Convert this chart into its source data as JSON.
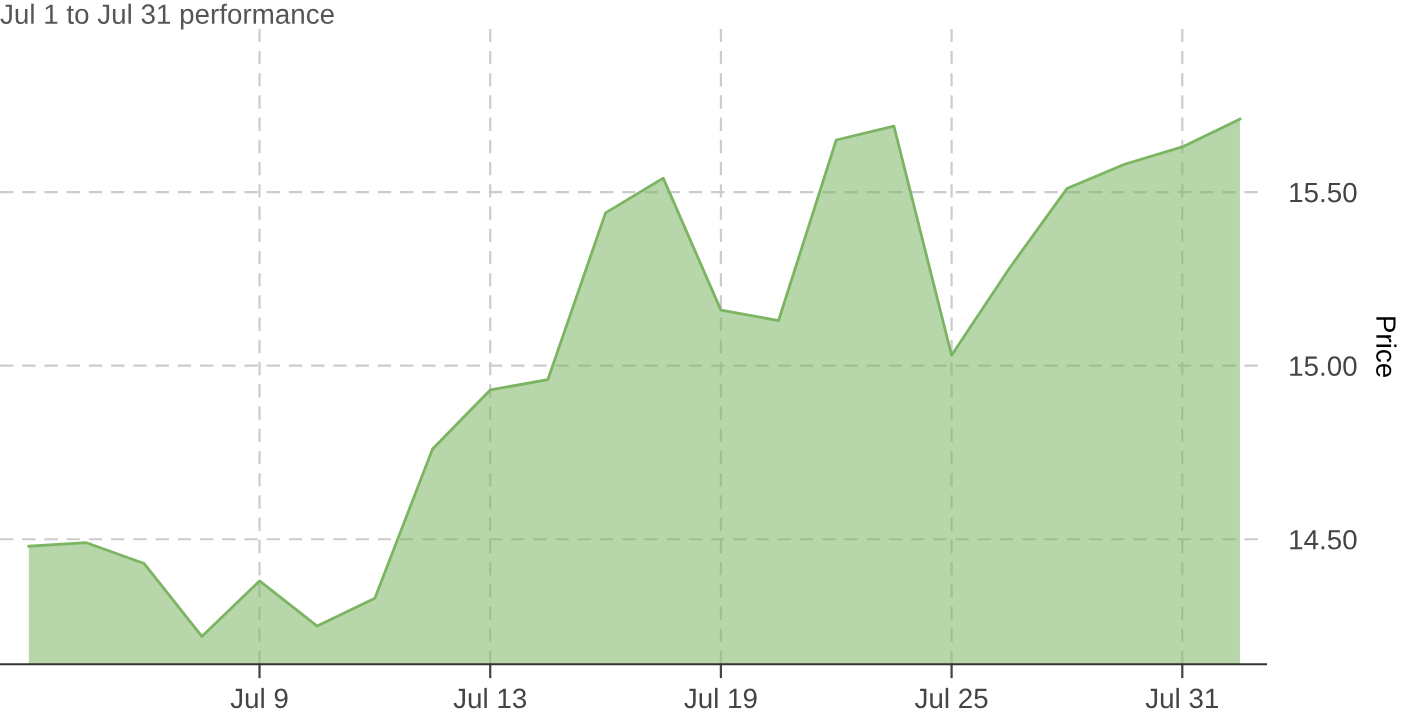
{
  "chart_data": {
    "type": "area",
    "title": "Jul 1 to Jul 31 performance",
    "ylabel": "Price",
    "categories": [
      null,
      null,
      null,
      null,
      "Jul 9",
      null,
      null,
      null,
      "Jul 13",
      null,
      null,
      null,
      "Jul 19",
      null,
      null,
      null,
      "Jul 25",
      null,
      null,
      null,
      "Jul 31",
      null
    ],
    "series": [
      {
        "color": "#7cb562",
        "values": [
          14.48,
          14.49,
          14.43,
          14.22,
          14.38,
          14.25,
          14.33,
          14.76,
          14.93,
          14.96,
          15.44,
          15.54,
          15.16,
          15.13,
          15.65,
          15.69,
          15.03,
          15.28,
          15.51,
          15.58,
          15.63,
          15.71
        ]
      }
    ],
    "ylim": [
      14.14,
      15.97
    ],
    "yticks": [
      {
        "value": 14.5,
        "label": "14.50"
      },
      {
        "value": 15.0,
        "label": "15.00"
      },
      {
        "value": 15.5,
        "label": "15.50"
      }
    ],
    "grid": true,
    "line_style": "solid"
  }
}
